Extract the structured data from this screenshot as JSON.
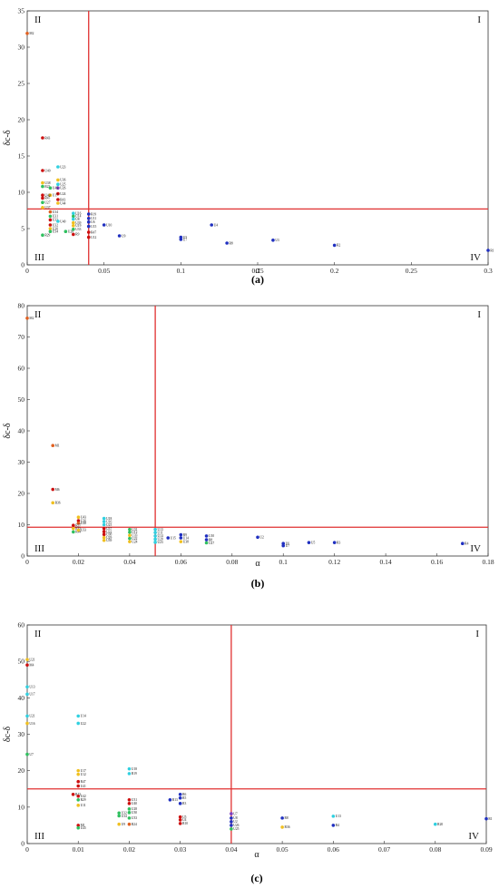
{
  "chart_data": [
    {
      "type": "scatter",
      "panel_label": "(a)",
      "xlabel": "α",
      "ylabel": "δc-δ",
      "xlim": [
        0,
        0.3
      ],
      "ylim": [
        0,
        35
      ],
      "xticks": [
        "0",
        "0.05",
        "0.1",
        "0.15",
        "0.2",
        "0.25",
        "0.3"
      ],
      "yticks": [
        "0",
        "5",
        "10",
        "15",
        "20",
        "25",
        "30",
        "35"
      ],
      "threshold_x": 0.04,
      "threshold_y": 7.7,
      "quadrants": {
        "I": "I",
        "II": "II",
        "III": "III",
        "IV": "IV"
      },
      "colors": {
        "threshold": "#e03030"
      },
      "points": [
        {
          "label": "M2",
          "x": 0.0,
          "y": 31.9,
          "color": "#e06020"
        },
        {
          "label": "R43",
          "x": 0.01,
          "y": 17.5,
          "color": "#cc1010"
        },
        {
          "label": "U40",
          "x": 0.01,
          "y": 13.0,
          "color": "#cc1010"
        },
        {
          "label": "U23",
          "x": 0.02,
          "y": 13.5,
          "color": "#30d0e0"
        },
        {
          "label": "U36",
          "x": 0.02,
          "y": 11.7,
          "color": "#f0c020"
        },
        {
          "label": "U25",
          "x": 0.02,
          "y": 11.1,
          "color": "#30d0e0"
        },
        {
          "label": "U26",
          "x": 0.02,
          "y": 10.6,
          "color": "#8040c0"
        },
        {
          "label": "U38",
          "x": 0.01,
          "y": 11.3,
          "color": "#f0c020"
        },
        {
          "label": "R22",
          "x": 0.01,
          "y": 10.8,
          "color": "#30c060"
        },
        {
          "label": "U45",
          "x": 0.015,
          "y": 10.6,
          "color": "#30c060"
        },
        {
          "label": "U24",
          "x": 0.02,
          "y": 9.8,
          "color": "#cc1010"
        },
        {
          "label": "U17",
          "x": 0.015,
          "y": 9.6,
          "color": "#f0c020"
        },
        {
          "label": "U40",
          "x": 0.01,
          "y": 9.6,
          "color": "#cc1010"
        },
        {
          "label": "R47",
          "x": 0.01,
          "y": 9.2,
          "color": "#cc1010"
        },
        {
          "label": "R43",
          "x": 0.02,
          "y": 9.0,
          "color": "#cc1010"
        },
        {
          "label": "U27",
          "x": 0.01,
          "y": 8.6,
          "color": "#30c060"
        },
        {
          "label": "U44",
          "x": 0.02,
          "y": 8.5,
          "color": "#f0c020"
        },
        {
          "label": "U37",
          "x": 0.01,
          "y": 7.9,
          "color": "#f0c020"
        },
        {
          "label": "U34",
          "x": 0.015,
          "y": 7.3,
          "color": "#e06020"
        },
        {
          "label": "U31",
          "x": 0.015,
          "y": 6.7,
          "color": "#30c060"
        },
        {
          "label": "U33",
          "x": 0.015,
          "y": 6.2,
          "color": "#cc1010"
        },
        {
          "label": "U40",
          "x": 0.02,
          "y": 6.0,
          "color": "#30d0e0"
        },
        {
          "label": "U32",
          "x": 0.015,
          "y": 5.5,
          "color": "#cc1010"
        },
        {
          "label": "U30",
          "x": 0.015,
          "y": 5.0,
          "color": "#f0c020"
        },
        {
          "label": "U34",
          "x": 0.015,
          "y": 4.6,
          "color": "#30c060"
        },
        {
          "label": "R29",
          "x": 0.01,
          "y": 4.1,
          "color": "#30c060"
        },
        {
          "label": "U16",
          "x": 0.03,
          "y": 7.1,
          "color": "#30d0e0"
        },
        {
          "label": "U14",
          "x": 0.03,
          "y": 6.7,
          "color": "#30c060"
        },
        {
          "label": "U8",
          "x": 0.03,
          "y": 6.3,
          "color": "#30d0e0"
        },
        {
          "label": "U39",
          "x": 0.03,
          "y": 5.8,
          "color": "#f0c020"
        },
        {
          "label": "U19",
          "x": 0.03,
          "y": 5.4,
          "color": "#f0c020"
        },
        {
          "label": "U26",
          "x": 0.025,
          "y": 4.6,
          "color": "#30c060"
        },
        {
          "label": "U33",
          "x": 0.03,
          "y": 4.9,
          "color": "#30c060"
        },
        {
          "label": "R9",
          "x": 0.03,
          "y": 4.2,
          "color": "#cc1010"
        },
        {
          "label": "R19",
          "x": 0.04,
          "y": 7.0,
          "color": "#2030c0"
        },
        {
          "label": "U11",
          "x": 0.04,
          "y": 6.4,
          "color": "#2030c0"
        },
        {
          "label": "U6",
          "x": 0.04,
          "y": 5.9,
          "color": "#2030c0"
        },
        {
          "label": "U15",
          "x": 0.04,
          "y": 5.3,
          "color": "#2030c0"
        },
        {
          "label": "R47",
          "x": 0.04,
          "y": 4.5,
          "color": "#cc1010"
        },
        {
          "label": "U12",
          "x": 0.04,
          "y": 3.8,
          "color": "#cc1010"
        },
        {
          "label": "U10",
          "x": 0.05,
          "y": 5.5,
          "color": "#2030c0"
        },
        {
          "label": "U9",
          "x": 0.06,
          "y": 4.0,
          "color": "#2030c0"
        },
        {
          "label": "U5",
          "x": 0.1,
          "y": 3.8,
          "color": "#2030c0"
        },
        {
          "label": "U7",
          "x": 0.1,
          "y": 3.5,
          "color": "#2030c0"
        },
        {
          "label": "U4",
          "x": 0.12,
          "y": 5.5,
          "color": "#2030c0"
        },
        {
          "label": "R8",
          "x": 0.13,
          "y": 3.0,
          "color": "#2030c0"
        },
        {
          "label": "U3",
          "x": 0.16,
          "y": 3.4,
          "color": "#2030c0"
        },
        {
          "label": "R2",
          "x": 0.2,
          "y": 2.7,
          "color": "#2030c0"
        },
        {
          "label": "R1",
          "x": 0.3,
          "y": 2.0,
          "color": "#2030c0"
        }
      ]
    },
    {
      "type": "scatter",
      "panel_label": "(b)",
      "xlabel": "α",
      "ylabel": "δc-δ",
      "xlim": [
        0,
        0.18
      ],
      "ylim": [
        0,
        80
      ],
      "xticks": [
        "0",
        "0.02",
        "0.04",
        "0.06",
        "0.08",
        "0.1",
        "0.12",
        "0.14",
        "0.16",
        "0.18"
      ],
      "yticks": [
        "0",
        "10",
        "20",
        "30",
        "40",
        "50",
        "60",
        "70",
        "80"
      ],
      "threshold_x": 0.05,
      "threshold_y": 9.2,
      "quadrants": {
        "I": "I",
        "II": "II",
        "III": "III",
        "IV": "IV"
      },
      "colors": {
        "threshold": "#e03030"
      },
      "points": [
        {
          "label": "M2",
          "x": 0.0,
          "y": 76.0,
          "color": "#e06020"
        },
        {
          "label": "M1",
          "x": 0.01,
          "y": 35.3,
          "color": "#e06020"
        },
        {
          "label": "M6",
          "x": 0.01,
          "y": 21.3,
          "color": "#cc1010"
        },
        {
          "label": "R36",
          "x": 0.01,
          "y": 17.0,
          "color": "#f0c020"
        },
        {
          "label": "U43",
          "x": 0.02,
          "y": 12.4,
          "color": "#f0c020"
        },
        {
          "label": "U26",
          "x": 0.02,
          "y": 11.3,
          "color": "#cc1010"
        },
        {
          "label": "U28",
          "x": 0.02,
          "y": 10.5,
          "color": "#e06020"
        },
        {
          "label": "R37",
          "x": 0.018,
          "y": 9.8,
          "color": "#cc1010"
        },
        {
          "label": "R45",
          "x": 0.018,
          "y": 8.8,
          "color": "#f0c020"
        },
        {
          "label": "R44",
          "x": 0.018,
          "y": 7.7,
          "color": "#30c060"
        },
        {
          "label": "U33",
          "x": 0.02,
          "y": 8.3,
          "color": "#f0c020"
        },
        {
          "label": "U18",
          "x": 0.03,
          "y": 12.0,
          "color": "#30d0e0"
        },
        {
          "label": "U16",
          "x": 0.03,
          "y": 11.0,
          "color": "#30d0e0"
        },
        {
          "label": "U25",
          "x": 0.03,
          "y": 10.0,
          "color": "#30d0e0"
        },
        {
          "label": "U37",
          "x": 0.03,
          "y": 8.8,
          "color": "#cc1010"
        },
        {
          "label": "U32",
          "x": 0.03,
          "y": 7.8,
          "color": "#cc1010"
        },
        {
          "label": "U30",
          "x": 0.03,
          "y": 6.9,
          "color": "#cc1010"
        },
        {
          "label": "U29",
          "x": 0.03,
          "y": 5.9,
          "color": "#f0c020"
        },
        {
          "label": "U39",
          "x": 0.03,
          "y": 5.0,
          "color": "#f0c020"
        },
        {
          "label": "U31",
          "x": 0.04,
          "y": 8.5,
          "color": "#30c060"
        },
        {
          "label": "U12",
          "x": 0.04,
          "y": 7.6,
          "color": "#30c060"
        },
        {
          "label": "U33",
          "x": 0.04,
          "y": 6.6,
          "color": "#f0c020"
        },
        {
          "label": "U22",
          "x": 0.04,
          "y": 5.6,
          "color": "#30c060"
        },
        {
          "label": "U24",
          "x": 0.04,
          "y": 4.6,
          "color": "#f0c020"
        },
        {
          "label": "U13",
          "x": 0.05,
          "y": 8.5,
          "color": "#30d0e0"
        },
        {
          "label": "U11",
          "x": 0.05,
          "y": 7.5,
          "color": "#30d0e0"
        },
        {
          "label": "U14",
          "x": 0.05,
          "y": 6.4,
          "color": "#30d0e0"
        },
        {
          "label": "U20",
          "x": 0.05,
          "y": 5.4,
          "color": "#30d0e0"
        },
        {
          "label": "U23",
          "x": 0.05,
          "y": 4.4,
          "color": "#30d0e0"
        },
        {
          "label": "R9",
          "x": 0.06,
          "y": 6.8,
          "color": "#2030c0"
        },
        {
          "label": "U14",
          "x": 0.06,
          "y": 5.8,
          "color": "#2030c0"
        },
        {
          "label": "U15",
          "x": 0.055,
          "y": 5.8,
          "color": "#2030c0"
        },
        {
          "label": "U38",
          "x": 0.06,
          "y": 4.6,
          "color": "#f0c020"
        },
        {
          "label": "U10",
          "x": 0.07,
          "y": 6.4,
          "color": "#2030c0"
        },
        {
          "label": "R8",
          "x": 0.07,
          "y": 5.2,
          "color": "#2030c0"
        },
        {
          "label": "U27",
          "x": 0.07,
          "y": 4.2,
          "color": "#30c060"
        },
        {
          "label": "U2",
          "x": 0.09,
          "y": 6.0,
          "color": "#2030c0"
        },
        {
          "label": "U6",
          "x": 0.1,
          "y": 4.0,
          "color": "#2030c0"
        },
        {
          "label": "U7",
          "x": 0.1,
          "y": 3.3,
          "color": "#2030c0"
        },
        {
          "label": "U5",
          "x": 0.11,
          "y": 4.3,
          "color": "#2030c0"
        },
        {
          "label": "R3",
          "x": 0.12,
          "y": 4.3,
          "color": "#2030c0"
        },
        {
          "label": "R4",
          "x": 0.17,
          "y": 4.0,
          "color": "#2030c0"
        }
      ]
    },
    {
      "type": "scatter",
      "panel_label": "(c)",
      "xlabel": "α",
      "ylabel": "δc-δ",
      "xlim": [
        0,
        0.09
      ],
      "ylim": [
        0,
        60
      ],
      "xticks": [
        "0",
        "0.01",
        "0.02",
        "0.03",
        "0.04",
        "0.05",
        "0.06",
        "0.07",
        "0.08",
        "0.09"
      ],
      "yticks": [
        "0",
        "10",
        "20",
        "30",
        "40",
        "50",
        "60"
      ],
      "threshold_x": 0.04,
      "threshold_y": 15.0,
      "quadrants": {
        "I": "I",
        "II": "II",
        "III": "III",
        "IV": "IV"
      },
      "colors": {
        "threshold": "#e03030"
      },
      "points": [
        {
          "label": "U21",
          "x": 0.0,
          "y": 50.5,
          "color": "#f0c020"
        },
        {
          "label": "M4",
          "x": 0.0,
          "y": 49.0,
          "color": "#cc1010"
        },
        {
          "label": "U13",
          "x": 0.0,
          "y": 43.0,
          "color": "#30d0e0"
        },
        {
          "label": "U17",
          "x": 0.0,
          "y": 41.0,
          "color": "#30d0e0"
        },
        {
          "label": "U21",
          "x": 0.0,
          "y": 35.0,
          "color": "#30d0e0"
        },
        {
          "label": "U16",
          "x": 0.0,
          "y": 33.0,
          "color": "#f0c020"
        },
        {
          "label": "U7",
          "x": 0.0,
          "y": 24.5,
          "color": "#30c060"
        },
        {
          "label": "U14",
          "x": 0.01,
          "y": 35.0,
          "color": "#30d0e0"
        },
        {
          "label": "U22",
          "x": 0.01,
          "y": 33.0,
          "color": "#30d0e0"
        },
        {
          "label": "U17",
          "x": 0.01,
          "y": 20.0,
          "color": "#f0c020"
        },
        {
          "label": "U12",
          "x": 0.01,
          "y": 19.0,
          "color": "#f0c020"
        },
        {
          "label": "R47",
          "x": 0.01,
          "y": 17.0,
          "color": "#cc1010"
        },
        {
          "label": "U41",
          "x": 0.01,
          "y": 15.8,
          "color": "#cc1010"
        },
        {
          "label": "R43",
          "x": 0.009,
          "y": 13.5,
          "color": "#cc1010"
        },
        {
          "label": "U42",
          "x": 0.01,
          "y": 13.0,
          "color": "#cc1010"
        },
        {
          "label": "R29",
          "x": 0.01,
          "y": 12.0,
          "color": "#30c060"
        },
        {
          "label": "U11",
          "x": 0.01,
          "y": 10.5,
          "color": "#f0c020"
        },
        {
          "label": "M1",
          "x": 0.01,
          "y": 5.0,
          "color": "#cc1010"
        },
        {
          "label": "U45",
          "x": 0.01,
          "y": 4.3,
          "color": "#30c060"
        },
        {
          "label": "U18",
          "x": 0.02,
          "y": 20.5,
          "color": "#30d0e0"
        },
        {
          "label": "R19",
          "x": 0.02,
          "y": 19.2,
          "color": "#30d0e0"
        },
        {
          "label": "U31",
          "x": 0.02,
          "y": 12.0,
          "color": "#cc1010"
        },
        {
          "label": "U40",
          "x": 0.02,
          "y": 11.0,
          "color": "#cc1010"
        },
        {
          "label": "U28",
          "x": 0.02,
          "y": 9.5,
          "color": "#30c060"
        },
        {
          "label": "U30",
          "x": 0.02,
          "y": 8.5,
          "color": "#30c060"
        },
        {
          "label": "U32",
          "x": 0.018,
          "y": 8.4,
          "color": "#30c060"
        },
        {
          "label": "U34",
          "x": 0.018,
          "y": 7.6,
          "color": "#30c060"
        },
        {
          "label": "U33",
          "x": 0.02,
          "y": 7.0,
          "color": "#30c060"
        },
        {
          "label": "U9",
          "x": 0.018,
          "y": 5.3,
          "color": "#f0c020"
        },
        {
          "label": "R24",
          "x": 0.02,
          "y": 5.3,
          "color": "#e06020"
        },
        {
          "label": "R6",
          "x": 0.03,
          "y": 13.5,
          "color": "#2030c0"
        },
        {
          "label": "R13",
          "x": 0.028,
          "y": 12.0,
          "color": "#2030c0"
        },
        {
          "label": "R5",
          "x": 0.03,
          "y": 12.5,
          "color": "#2030c0"
        },
        {
          "label": "R3",
          "x": 0.03,
          "y": 11.0,
          "color": "#2030c0"
        },
        {
          "label": "U5",
          "x": 0.03,
          "y": 7.3,
          "color": "#cc1010"
        },
        {
          "label": "U4",
          "x": 0.03,
          "y": 6.5,
          "color": "#cc1010"
        },
        {
          "label": "R10",
          "x": 0.03,
          "y": 5.5,
          "color": "#cc1010"
        },
        {
          "label": "U7",
          "x": 0.04,
          "y": 8.2,
          "color": "#8040c0"
        },
        {
          "label": "U8",
          "x": 0.04,
          "y": 7.0,
          "color": "#2030c0"
        },
        {
          "label": "U2",
          "x": 0.04,
          "y": 6.0,
          "color": "#2030c0"
        },
        {
          "label": "U26",
          "x": 0.04,
          "y": 5.0,
          "color": "#2030c0"
        },
        {
          "label": "U25",
          "x": 0.04,
          "y": 4.0,
          "color": "#30c060"
        },
        {
          "label": "R8",
          "x": 0.05,
          "y": 7.0,
          "color": "#2030c0"
        },
        {
          "label": "R36",
          "x": 0.05,
          "y": 4.5,
          "color": "#f0c020"
        },
        {
          "label": "U13",
          "x": 0.06,
          "y": 7.5,
          "color": "#30d0e0"
        },
        {
          "label": "R4",
          "x": 0.06,
          "y": 5.0,
          "color": "#2030c0"
        },
        {
          "label": "R20",
          "x": 0.08,
          "y": 5.3,
          "color": "#30d0e0"
        },
        {
          "label": "R1",
          "x": 0.09,
          "y": 6.8,
          "color": "#2030c0"
        }
      ]
    }
  ]
}
